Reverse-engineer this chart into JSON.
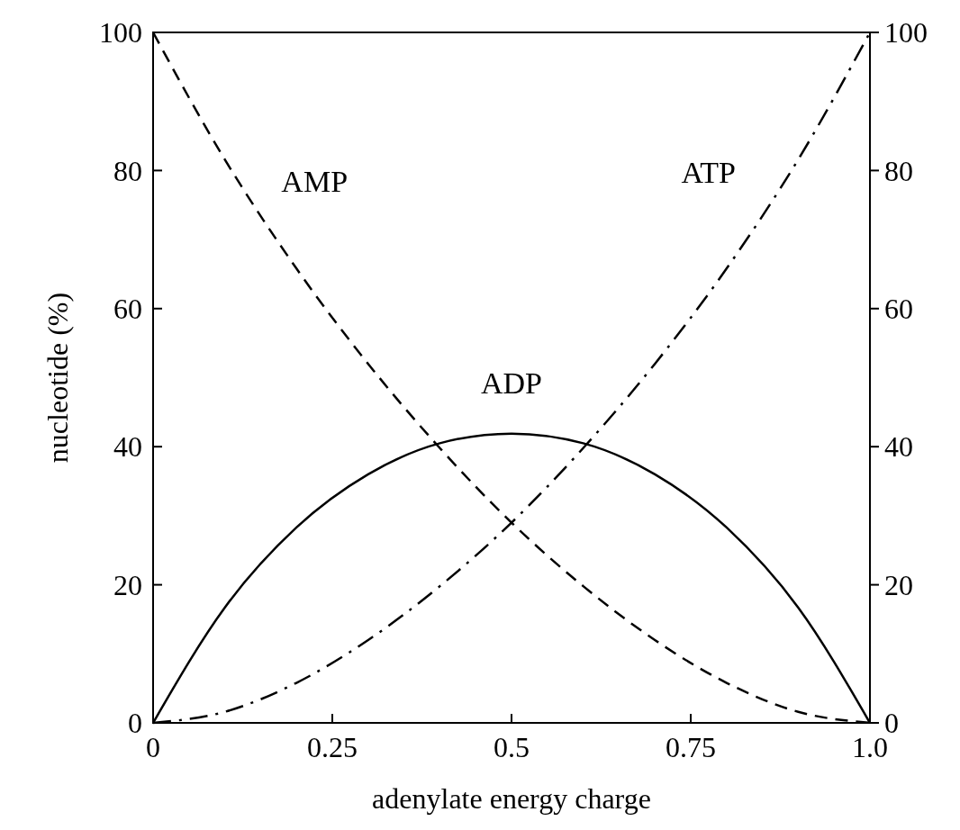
{
  "chart_data": {
    "type": "line",
    "xlabel": "adenylate energy charge",
    "ylabel": "nucleotide (%)",
    "x": [
      0,
      0.1,
      0.2,
      0.3,
      0.4,
      0.5,
      0.6,
      0.7,
      0.8,
      0.9,
      1.0
    ],
    "series": [
      {
        "name": "AMP",
        "color": "#000000",
        "line_style": "dashed",
        "values": [
          100,
          81.6,
          65.8,
          52.0,
          39.8,
          29.0,
          19.8,
          12.0,
          5.8,
          1.6,
          0
        ]
      },
      {
        "name": "ADP",
        "color": "#000000",
        "line_style": "solid",
        "values": [
          0,
          16.7,
          28.3,
          36.0,
          40.5,
          41.9,
          40.5,
          36.0,
          28.3,
          16.7,
          0
        ]
      },
      {
        "name": "ATP",
        "color": "#000000",
        "line_style": "dashdot",
        "values": [
          0,
          1.6,
          5.8,
          12.0,
          19.8,
          29.0,
          39.8,
          52.0,
          65.8,
          81.6,
          100
        ]
      }
    ],
    "xlim": [
      0,
      1
    ],
    "xticks": [
      0,
      0.25,
      0.5,
      0.75,
      {
        "value": 1,
        "label": "1.0"
      }
    ],
    "ylim": [
      0,
      100
    ],
    "yticks": [
      0,
      20,
      40,
      60,
      80,
      100
    ],
    "y2lim": [
      0,
      100
    ],
    "y2ticks": [
      0,
      20,
      40,
      60,
      80,
      100
    ],
    "grid": false,
    "marker": "none"
  }
}
